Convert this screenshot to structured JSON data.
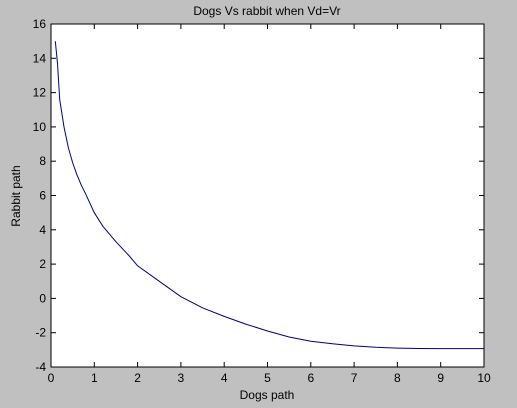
{
  "chart_data": {
    "type": "line",
    "title": "Dogs Vs rabbit when Vd=Vr",
    "xlabel": "Dogs path",
    "ylabel": "Rabbit path",
    "xlim": [
      0,
      10
    ],
    "ylim": [
      -4,
      16
    ],
    "xticks": [
      0,
      1,
      2,
      3,
      4,
      5,
      6,
      7,
      8,
      9,
      10
    ],
    "yticks": [
      -4,
      -2,
      0,
      2,
      4,
      6,
      8,
      10,
      12,
      14,
      16
    ],
    "grid": false,
    "series": [
      {
        "color": "#00007f",
        "x": [
          0.1,
          0.15,
          0.2,
          0.3,
          0.4,
          0.5,
          0.6,
          0.7,
          0.8,
          1.0,
          1.2,
          1.5,
          1.8,
          2.0,
          2.5,
          3.0,
          3.5,
          4.0,
          4.5,
          5.0,
          5.5,
          6.0,
          6.5,
          7.0,
          7.5,
          8.0,
          8.5,
          9.0,
          9.5,
          10.0
        ],
        "y": [
          15.0,
          13.7,
          11.6,
          10.0,
          8.8,
          7.9,
          7.2,
          6.6,
          6.1,
          5.0,
          4.2,
          3.3,
          2.5,
          1.9,
          1.0,
          0.1,
          -0.55,
          -1.05,
          -1.5,
          -1.9,
          -2.25,
          -2.5,
          -2.65,
          -2.77,
          -2.85,
          -2.9,
          -2.92,
          -2.93,
          -2.93,
          -2.93
        ]
      }
    ]
  }
}
